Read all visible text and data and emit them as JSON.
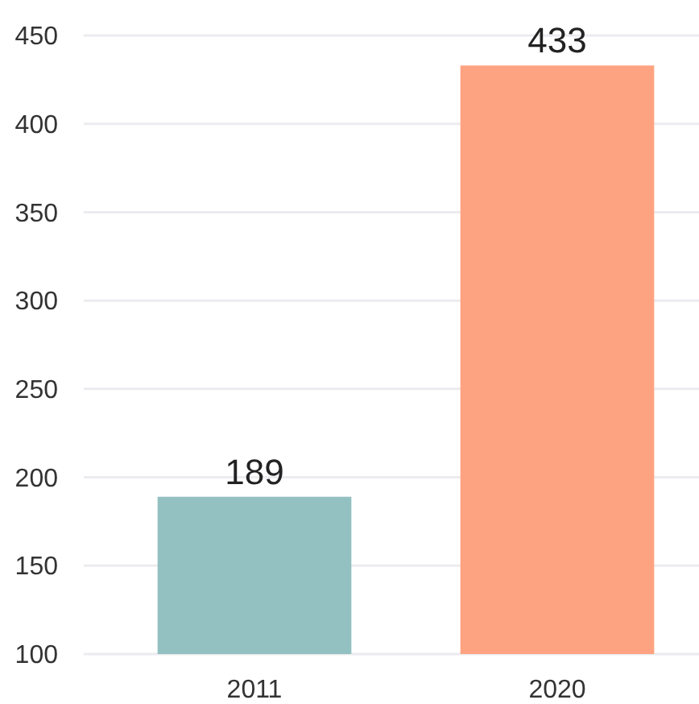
{
  "chart_data": {
    "type": "bar",
    "categories": [
      "2011",
      "2020"
    ],
    "values": [
      189,
      433
    ],
    "colors": [
      "#93c0c1",
      "#fea381"
    ],
    "value_labels": [
      "189",
      "433"
    ],
    "ylim": [
      100,
      450
    ],
    "yticks": [
      100,
      150,
      200,
      250,
      300,
      350,
      400,
      450
    ],
    "grid": "y"
  }
}
